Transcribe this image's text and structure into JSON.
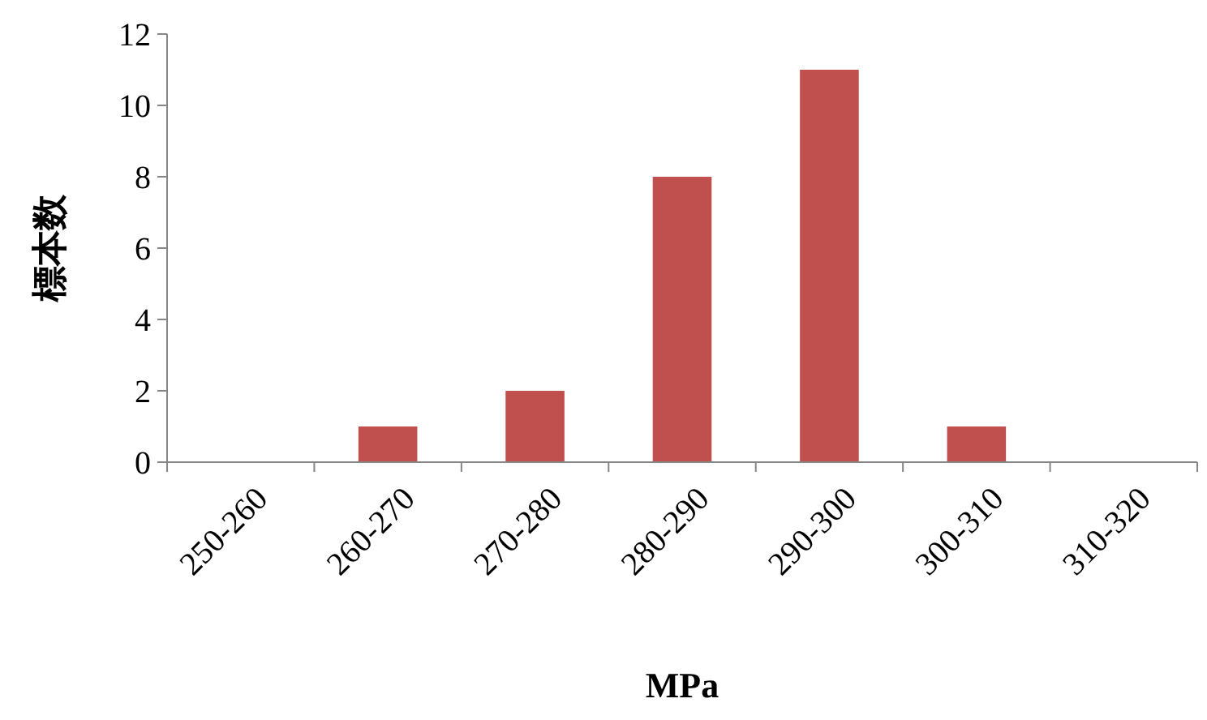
{
  "chart_data": {
    "type": "bar",
    "xlabel": "MPa",
    "ylabel": "標本数",
    "categories": [
      "250-260",
      "260-270",
      "270-280",
      "280-290",
      "290-300",
      "300-310",
      "310-320"
    ],
    "values": [
      0,
      1,
      2,
      8,
      11,
      1,
      0
    ],
    "color": "#c0504d",
    "ylim": [
      0,
      12
    ],
    "yticks": [
      0,
      2,
      4,
      6,
      8,
      10,
      12
    ]
  }
}
